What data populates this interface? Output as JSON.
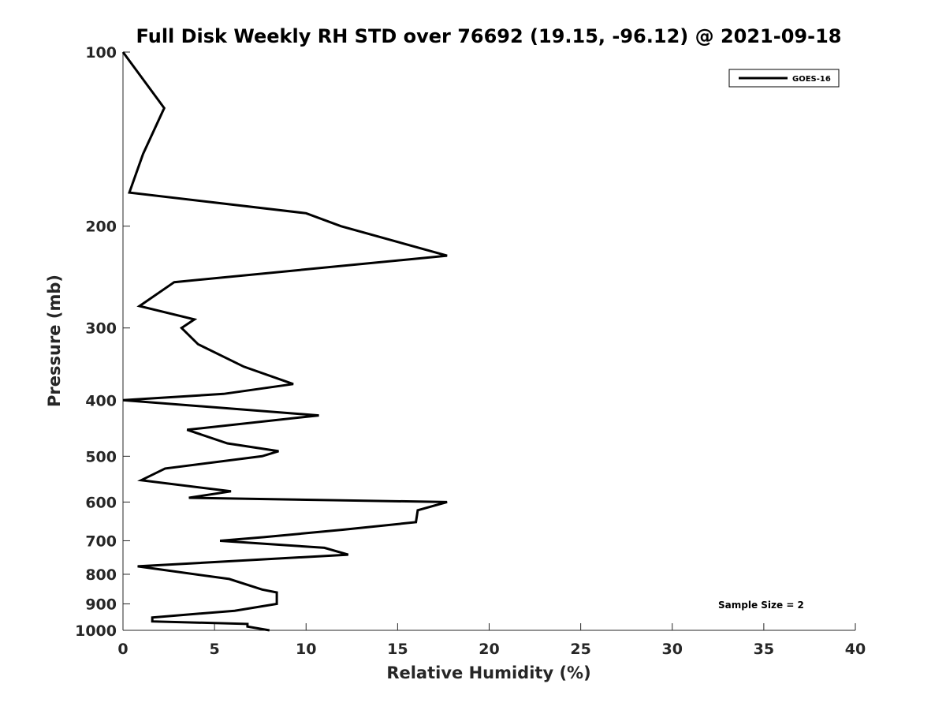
{
  "chart_data": {
    "type": "line",
    "title": "Full Disk Weekly RH STD over 76692 (19.15, -96.12) @ 2021-09-18",
    "xlabel": "Relative Humidity (%)",
    "ylabel": "Pressure (mb)",
    "xlim": [
      0,
      40
    ],
    "ylim": [
      100,
      1000
    ],
    "y_scale": "log",
    "y_reversed": true,
    "grid": false,
    "legend_position": "top-right",
    "x_ticks": [
      "0",
      "5",
      "10",
      "15",
      "20",
      "25",
      "30",
      "35",
      "40"
    ],
    "y_ticks": [
      "100",
      "200",
      "300",
      "400",
      "500",
      "600",
      "700",
      "800",
      "900",
      "1000"
    ],
    "series": [
      {
        "name": "GOES-16",
        "color": "#000000",
        "points": [
          [
            0.0,
            100
          ],
          [
            2.25,
            125
          ],
          [
            1.1,
            150
          ],
          [
            0.35,
            175
          ],
          [
            10.0,
            190
          ],
          [
            11.9,
            200
          ],
          [
            17.7,
            225
          ],
          [
            2.8,
            250
          ],
          [
            0.9,
            275
          ],
          [
            3.9,
            290
          ],
          [
            3.2,
            300
          ],
          [
            4.1,
            320
          ],
          [
            6.6,
            350
          ],
          [
            9.3,
            375
          ],
          [
            5.5,
            390
          ],
          [
            0.0,
            400
          ],
          [
            10.7,
            425
          ],
          [
            3.5,
            450
          ],
          [
            5.7,
            475
          ],
          [
            8.5,
            490
          ],
          [
            7.6,
            500
          ],
          [
            2.3,
            525
          ],
          [
            1.0,
            550
          ],
          [
            5.9,
            575
          ],
          [
            3.6,
            590
          ],
          [
            17.7,
            600
          ],
          [
            16.1,
            620
          ],
          [
            16.0,
            650
          ],
          [
            12.0,
            670
          ],
          [
            7.7,
            690
          ],
          [
            5.3,
            700
          ],
          [
            11.0,
            720
          ],
          [
            12.3,
            740
          ],
          [
            0.8,
            775
          ],
          [
            5.8,
            815
          ],
          [
            7.6,
            850
          ],
          [
            8.4,
            860
          ],
          [
            8.4,
            900
          ],
          [
            6.1,
            925
          ],
          [
            1.6,
            950
          ],
          [
            1.6,
            965
          ],
          [
            6.8,
            975
          ],
          [
            6.8,
            985
          ],
          [
            8.0,
            1000
          ]
        ]
      }
    ],
    "annotation": "Sample Size = 2"
  }
}
